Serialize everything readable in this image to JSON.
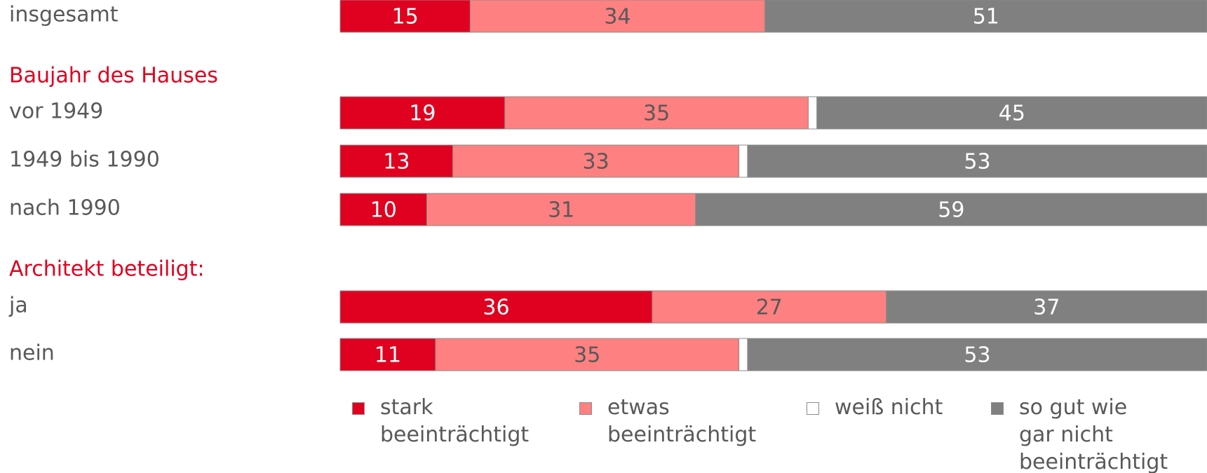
{
  "chart_data": {
    "type": "stacked-bar-horizontal",
    "categories": [
      "insgesamt",
      "vor 1949",
      "1949 bis 1990",
      "nach 1990",
      "ja",
      "nein"
    ],
    "group_titles": [
      "Baujahr des Hauses",
      "Architekt beteiligt:"
    ],
    "xlim": [
      0,
      100
    ],
    "series": [
      {
        "name": "stark\nbeeinträchtigt",
        "color": "#e0001f",
        "values": [
          15,
          19,
          13,
          10,
          36,
          11
        ]
      },
      {
        "name": "etwas\nbeeinträchtigt",
        "color": "#ff8080",
        "values": [
          34,
          35,
          33,
          31,
          27,
          35
        ]
      },
      {
        "name": "weiß nicht",
        "color": "#ffffff",
        "values": [
          0,
          1,
          1,
          0,
          0,
          1
        ]
      },
      {
        "name": "so gut wie\ngar nicht\nbeeinträchtigt",
        "color": "#808080",
        "values": [
          51,
          45,
          53,
          59,
          37,
          53
        ]
      }
    ]
  }
}
